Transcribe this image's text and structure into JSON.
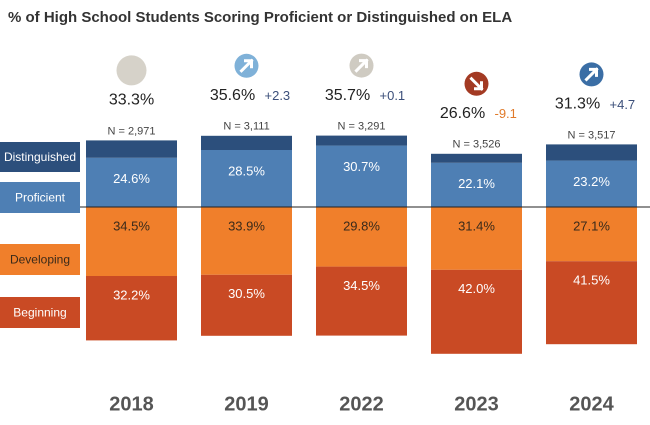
{
  "chart_data": {
    "type": "diverging_bar",
    "title": "% of High School Students Scoring Proficient or Distinguished on ELA",
    "categories": [
      "2018",
      "2019",
      "2022",
      "2023",
      "2024"
    ],
    "series": [
      {
        "name": "Developing",
        "color": "#f07f2b",
        "label_color": "#3a2a1a",
        "values": [
          34.5,
          33.9,
          29.8,
          31.4,
          27.1
        ],
        "value_labels": [
          "34.5%",
          "33.9%",
          "29.8%",
          "31.4%",
          "27.1%"
        ]
      },
      {
        "name": "Beginning",
        "color": "#c94a24",
        "label_color": "#ffffff",
        "values": [
          32.2,
          30.5,
          34.5,
          42.0,
          41.5
        ],
        "value_labels": [
          "32.2%",
          "30.5%",
          "34.5%",
          "42.0%",
          "41.5%"
        ]
      },
      {
        "name": "Proficient",
        "color": "#4e7fb4",
        "label_color": "#ffffff",
        "values": [
          24.6,
          28.5,
          30.7,
          22.1,
          23.2
        ],
        "value_labels": [
          "24.6%",
          "28.5%",
          "30.7%",
          "22.1%",
          "23.2%"
        ]
      },
      {
        "name": "Distinguished",
        "color": "#2c4f7c",
        "label_color": "#ffffff",
        "values": [
          8.7,
          7.1,
          5.0,
          4.5,
          8.1
        ]
      }
    ],
    "totals": [
      33.3,
      35.6,
      35.7,
      26.6,
      31.3
    ],
    "total_labels": [
      "33.3%",
      "35.6%",
      "35.7%",
      "26.6%",
      "31.3%"
    ],
    "changes": [
      null,
      2.3,
      0.1,
      -9.1,
      4.7
    ],
    "change_labels": [
      null,
      "+2.3",
      "+0.1",
      "-9.1",
      "+4.7"
    ],
    "change_colors": [
      null,
      "#3b4f7a",
      "#3b4f7a",
      "#e07a2a",
      "#3b4f7a"
    ],
    "indicator_colors": [
      "#d6d2c9",
      "#7fb1d8",
      "#cfcbc2",
      "#a33a23",
      "#3b6ea5"
    ],
    "n_labels": [
      "N = 2,971",
      "N = 3,111",
      "N = 3,291",
      "N = 3,526",
      "N = 3,517"
    ]
  }
}
